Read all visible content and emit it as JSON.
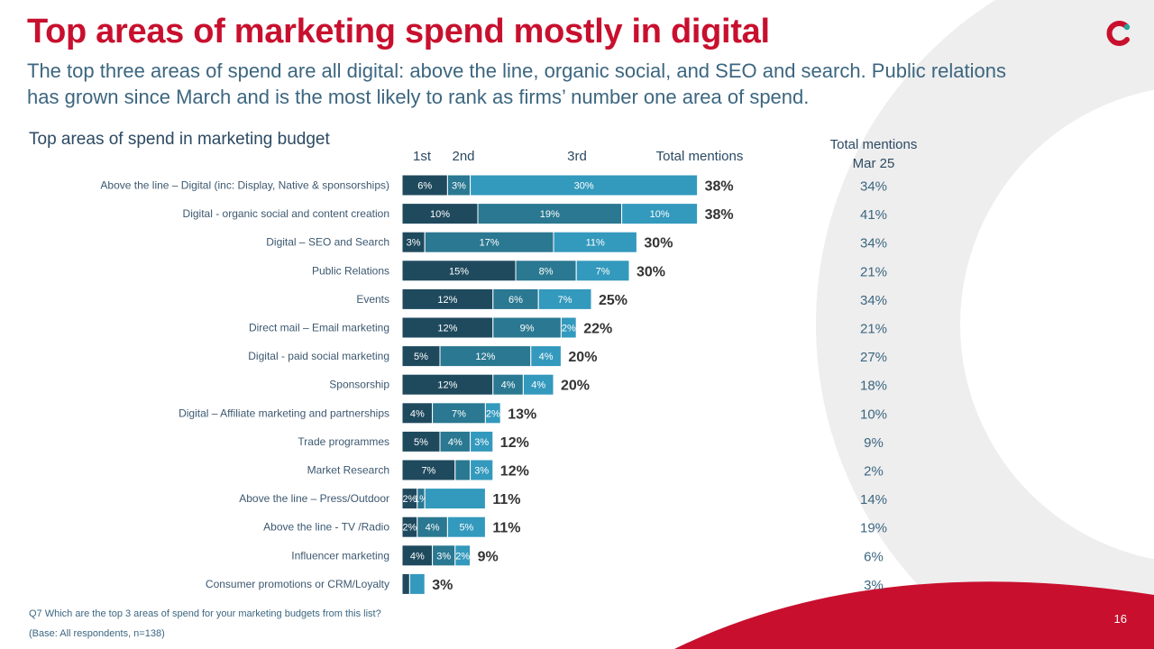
{
  "slide": {
    "title": "Top areas of marketing spend mostly in digital",
    "subtitle": "The top three areas of spend are all digital: above the line, organic social, and SEO and search. Public relations has grown since March and is the most likely to rank as firms’ number one area of spend.",
    "chart_title": "Top areas of spend in marketing budget",
    "footnote_question": "Q7 Which are the top 3 areas of spend for your marketing budgets from this list?",
    "footnote_base": "(Base: All respondents, n=138)",
    "page_number": "16"
  },
  "colors": {
    "brand_red": "#c8102e",
    "first": "#1f4a5e",
    "second": "#2a7891",
    "third": "#3399bd",
    "logo_teal": "#26a69a"
  },
  "chart_data": {
    "type": "bar",
    "orientation": "horizontal",
    "stacked": true,
    "xlim": [
      0,
      42
    ],
    "column_headers": [
      "1st",
      "2nd",
      "3rd",
      "Total mentions",
      "Total mentions Mar 25"
    ],
    "categories": [
      "Above the line – Digital  (inc: Display, Native & sponsorships)",
      "Digital - organic social and content creation",
      "Digital – SEO and Search",
      "Public Relations",
      "Events",
      "Direct mail – Email marketing",
      "Digital - paid social marketing",
      "Sponsorship",
      "Digital – Affiliate marketing and partnerships",
      "Trade programmes",
      "Market Research",
      "Above the line – Press/Outdoor",
      "Above the line - TV /Radio",
      "Influencer marketing",
      "Consumer promotions or CRM/Loyalty"
    ],
    "series": [
      {
        "name": "1st",
        "values": [
          6,
          10,
          3,
          15,
          12,
          12,
          5,
          12,
          4,
          5,
          7,
          2,
          2,
          4,
          1
        ]
      },
      {
        "name": "2nd",
        "values": [
          3,
          19,
          17,
          8,
          6,
          9,
          12,
          4,
          7,
          4,
          2,
          1,
          4,
          3,
          0
        ]
      },
      {
        "name": "3rd",
        "values": [
          30,
          10,
          11,
          7,
          7,
          2,
          4,
          4,
          2,
          3,
          3,
          8,
          5,
          2,
          2
        ]
      }
    ],
    "data_labels": [
      [
        "6%",
        "3%",
        "30%"
      ],
      [
        "10%",
        "19%",
        "10%"
      ],
      [
        "3%",
        "17%",
        "11%"
      ],
      [
        "15%",
        "8%",
        "7%"
      ],
      [
        "12%",
        "6%",
        "7%"
      ],
      [
        "12%",
        "9%",
        "2%"
      ],
      [
        "5%",
        "12%",
        "4%"
      ],
      [
        "12%",
        "4%",
        "4%"
      ],
      [
        "4%",
        "7%",
        "2%"
      ],
      [
        "5%",
        "4%",
        "3%"
      ],
      [
        "7%",
        "",
        "3%"
      ],
      [
        "2%",
        "1%",
        ""
      ],
      [
        "2%",
        "4%",
        "5%"
      ],
      [
        "4%",
        "3%",
        "2%"
      ],
      [
        "",
        "",
        ""
      ]
    ],
    "totals": [
      "38%",
      "38%",
      "30%",
      "30%",
      "25%",
      "22%",
      "20%",
      "20%",
      "13%",
      "12%",
      "12%",
      "11%",
      "11%",
      "9%",
      "3%"
    ],
    "totals_mar25": [
      "34%",
      "41%",
      "34%",
      "21%",
      "34%",
      "21%",
      "27%",
      "18%",
      "10%",
      "9%",
      "2%",
      "14%",
      "19%",
      "6%",
      "3%"
    ]
  }
}
